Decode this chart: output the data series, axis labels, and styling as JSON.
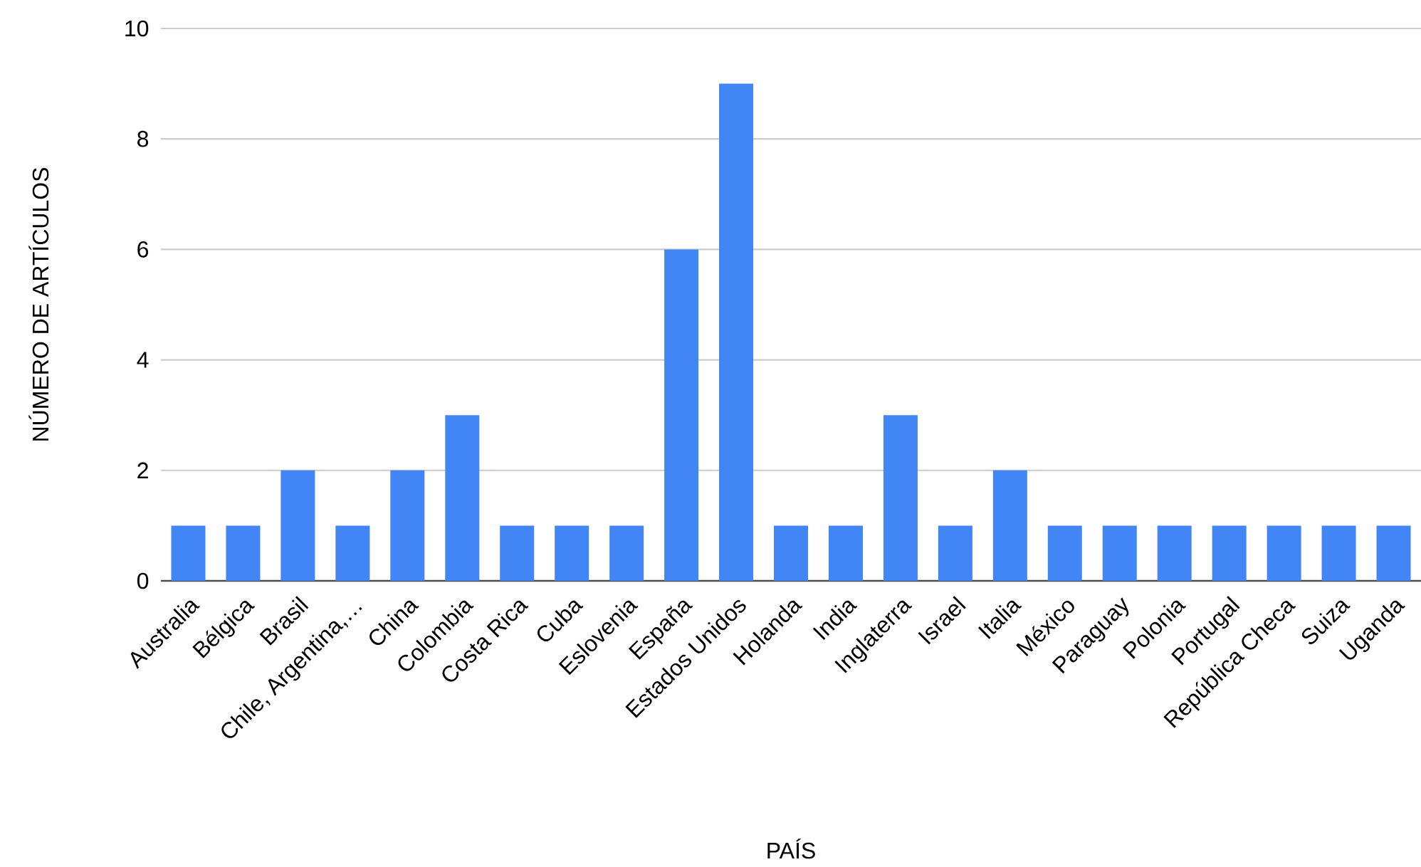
{
  "chart_data": {
    "type": "bar",
    "xlabel": "PAÍS",
    "ylabel": "NÚMERO DE ARTÍCULOS",
    "categories": [
      "Australia",
      "Bélgica",
      "Brasil",
      "Chile, Argentina,…",
      "China",
      "Colombia",
      "Costa Rica",
      "Cuba",
      "Eslovenia",
      "España",
      "Estados Unidos",
      "Holanda",
      "India",
      "Inglaterra",
      "Israel",
      "Italia",
      "México",
      "Paraguay",
      "Polonia",
      "Portugal",
      "República Checa",
      "Suiza",
      "Uganda"
    ],
    "values": [
      1,
      1,
      2,
      1,
      2,
      3,
      1,
      1,
      1,
      6,
      9,
      1,
      1,
      3,
      1,
      2,
      1,
      1,
      1,
      1,
      1,
      1,
      1
    ],
    "color": "#4285f4",
    "ylim": [
      0,
      10
    ],
    "yticks": [
      0,
      2,
      4,
      6,
      8,
      10
    ],
    "grid": "y"
  }
}
